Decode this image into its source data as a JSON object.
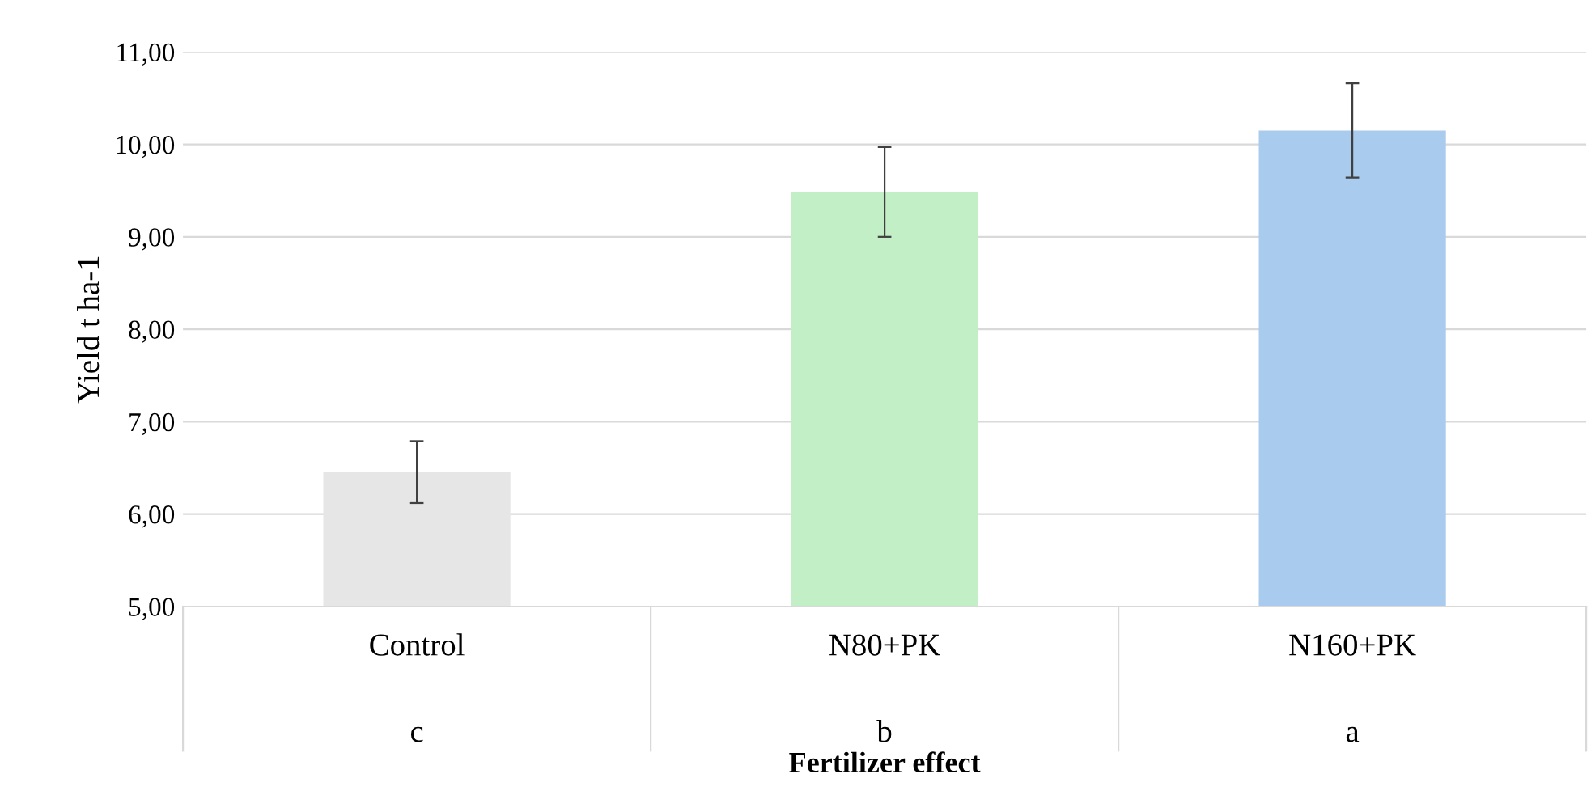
{
  "chart_data": {
    "type": "bar",
    "xlabel": "Fertilizer effect",
    "ylabel": "Yield t ha-1",
    "categories": [
      "Control",
      "N80+PK",
      "N160+PK"
    ],
    "values": [
      6.46,
      9.48,
      10.15
    ],
    "colors": [
      "#e7e6e6",
      "#c3efc7",
      "#a9cbee"
    ],
    "errors": [
      [
        6.12,
        6.79
      ],
      [
        9.0,
        9.97
      ],
      [
        9.64,
        10.66
      ]
    ],
    "ylim": [
      5,
      11
    ],
    "yticks": [
      {
        "value": 5,
        "label": "5,00"
      },
      {
        "value": 6,
        "label": "6,00"
      },
      {
        "value": 7,
        "label": "7,00"
      },
      {
        "value": 8,
        "label": "8,00"
      },
      {
        "value": 9,
        "label": "9,00"
      },
      {
        "value": 10,
        "label": "10,00"
      },
      {
        "value": 11,
        "label": "11,00"
      }
    ],
    "grid": "y",
    "annotations": [
      "c",
      "b",
      "a"
    ]
  }
}
